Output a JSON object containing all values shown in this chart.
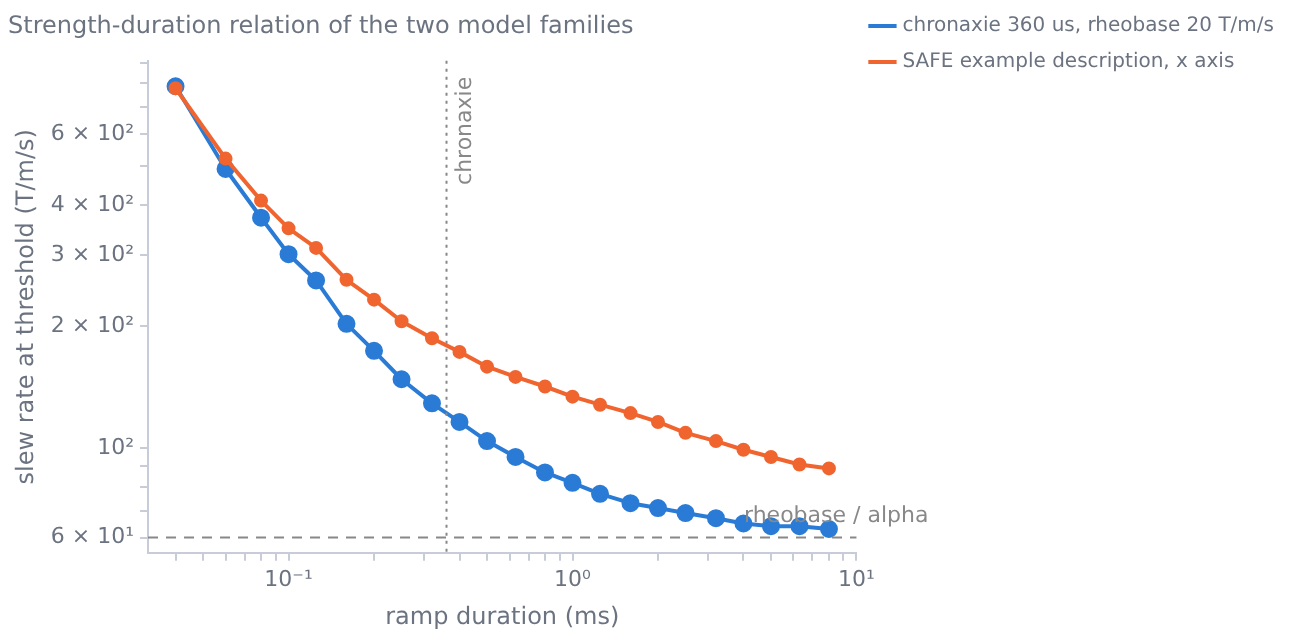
{
  "chart_data": {
    "type": "line",
    "title": "Strength-duration relation of the two model families",
    "xlabel": "ramp duration (ms)",
    "ylabel": "slew rate at threshold (T/m/s)",
    "log": "xy",
    "x": [
      0.04,
      0.06,
      0.08,
      0.1,
      0.125,
      0.16,
      0.2,
      0.25,
      0.32,
      0.4,
      0.5,
      0.63,
      0.8,
      1,
      1.25,
      1.6,
      2,
      2.5,
      3.2,
      4,
      5,
      6.3,
      8
    ],
    "series": [
      {
        "name": "chronaxie 360 us, rheobase 20 T/m/s",
        "color": "#2a7bd6",
        "values": [
          787,
          491,
          372,
          302,
          260,
          203,
          174,
          148,
          129,
          116,
          104,
          95,
          87,
          82,
          77,
          73,
          71,
          69,
          67,
          65,
          64,
          64,
          63
        ]
      },
      {
        "name": "SAFE example description, x axis",
        "color": "#f0652f",
        "values": [
          778,
          521,
          410,
          350,
          313,
          261,
          233,
          206,
          187,
          173,
          159,
          150,
          142,
          134,
          128,
          122,
          116,
          109,
          104,
          99,
          95,
          91,
          89
        ]
      }
    ],
    "xlim": [
      0.032,
      10
    ],
    "ylim": [
      55,
      910
    ],
    "xticks": [
      {
        "value": 0.04,
        "label": null
      },
      {
        "value": 0.05,
        "label": null
      },
      {
        "value": 0.06,
        "label": null
      },
      {
        "value": 0.07,
        "label": null
      },
      {
        "value": 0.08,
        "label": null
      },
      {
        "value": 0.09,
        "label": null
      },
      {
        "value": 0.1,
        "label": "10⁻¹"
      },
      {
        "value": 0.2,
        "label": null
      },
      {
        "value": 0.3,
        "label": null
      },
      {
        "value": 0.4,
        "label": null
      },
      {
        "value": 0.5,
        "label": null
      },
      {
        "value": 0.6,
        "label": null
      },
      {
        "value": 0.7,
        "label": null
      },
      {
        "value": 0.8,
        "label": null
      },
      {
        "value": 0.9,
        "label": null
      },
      {
        "value": 1,
        "label": "10⁰"
      },
      {
        "value": 2,
        "label": null
      },
      {
        "value": 3,
        "label": null
      },
      {
        "value": 4,
        "label": null
      },
      {
        "value": 5,
        "label": null
      },
      {
        "value": 6,
        "label": null
      },
      {
        "value": 7,
        "label": null
      },
      {
        "value": 8,
        "label": null
      },
      {
        "value": 9,
        "label": null
      },
      {
        "value": 10,
        "label": "10¹"
      }
    ],
    "yticks": [
      {
        "value": 60,
        "label": "6 × 10¹"
      },
      {
        "value": 70,
        "label": null
      },
      {
        "value": 80,
        "label": null
      },
      {
        "value": 90,
        "label": null
      },
      {
        "value": 100,
        "label": "10²"
      },
      {
        "value": 200,
        "label": "2 × 10²"
      },
      {
        "value": 300,
        "label": "3 × 10²"
      },
      {
        "value": 400,
        "label": "4 × 10²"
      },
      {
        "value": 500,
        "label": null
      },
      {
        "value": 600,
        "label": "6 × 10²"
      },
      {
        "value": 700,
        "label": null
      },
      {
        "value": 800,
        "label": null
      },
      {
        "value": 900,
        "label": null
      }
    ],
    "ref_lines": [
      {
        "axis": "x",
        "value": 0.36,
        "label": "chronaxie",
        "color": "#888888",
        "line_style": "dotted"
      },
      {
        "axis": "y",
        "value": 60,
        "label": "rheobase / alpha",
        "color": "#888888",
        "line_style": "dashed"
      }
    ],
    "legend": "right",
    "marker": "circle",
    "line_style": "solid",
    "grid": false
  }
}
